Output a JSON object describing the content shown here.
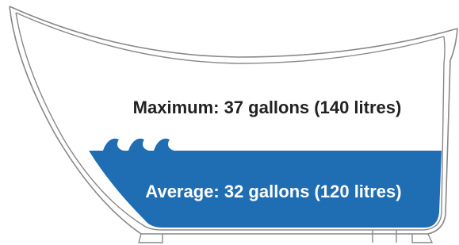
{
  "labels": {
    "maximum": "Maximum: 37 gallons (140 litres)",
    "average": "Average: 32 gallons (120 litres)"
  }
}
